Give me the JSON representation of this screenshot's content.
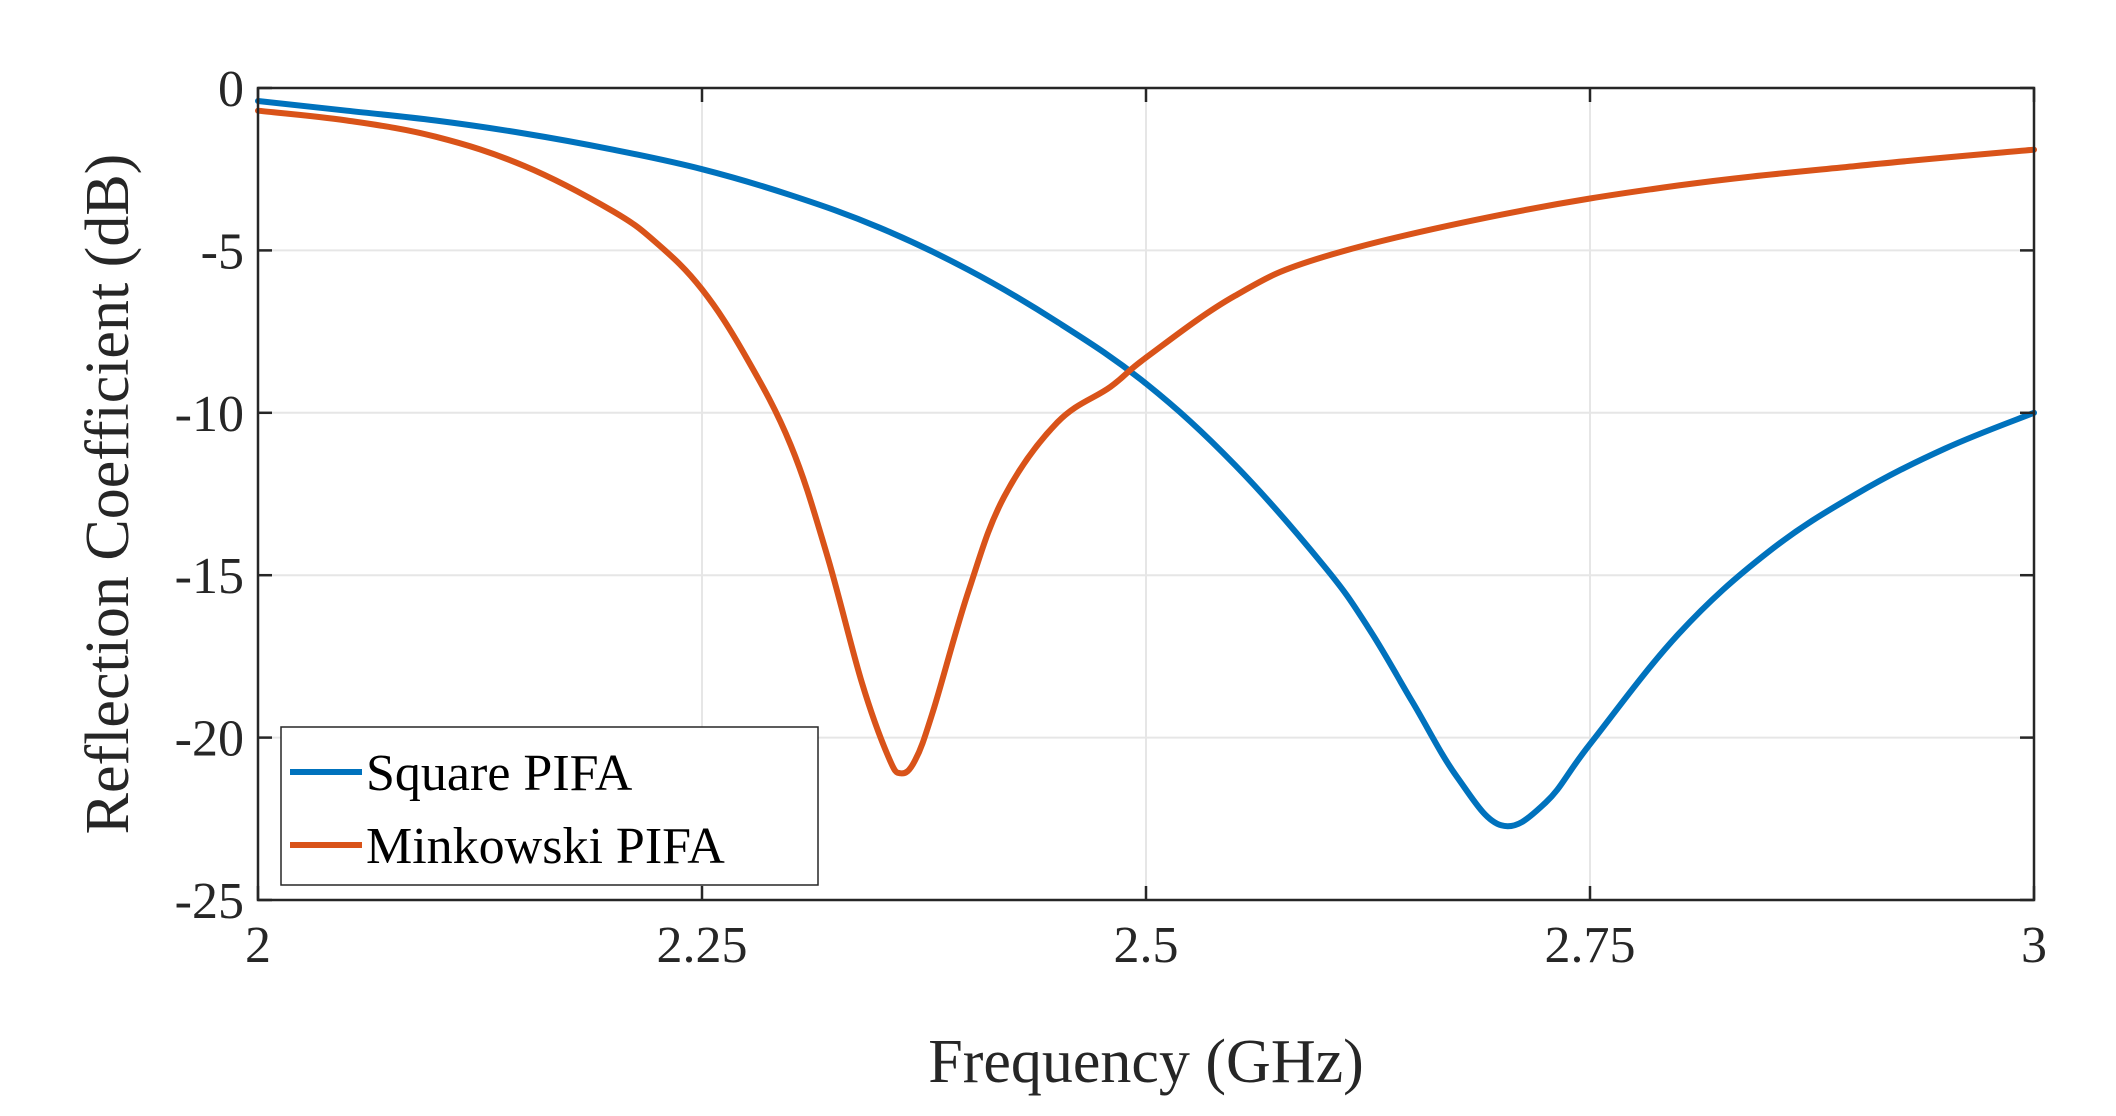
{
  "chart_data": {
    "type": "line",
    "title": "",
    "xlabel": "Frequency (GHz)",
    "ylabel": "Reflection Coefficient (dB)",
    "xlim": [
      2,
      3
    ],
    "ylim": [
      -25,
      0
    ],
    "xticks": [
      2,
      2.25,
      2.5,
      2.75,
      3
    ],
    "xtick_labels": [
      "2",
      "2.25",
      "2.5",
      "2.75",
      "3"
    ],
    "yticks": [
      0,
      -5,
      -10,
      -15,
      -20,
      -25
    ],
    "ytick_labels": [
      "0",
      "-5",
      "-10",
      "-15",
      "-20",
      "-25"
    ],
    "grid": true,
    "legend_position": "bottom-left",
    "series": [
      {
        "name": "Square PIFA",
        "color": "#0072BD",
        "x": [
          2.0,
          2.05,
          2.1,
          2.15,
          2.2,
          2.25,
          2.3,
          2.35,
          2.4,
          2.45,
          2.5,
          2.55,
          2.6,
          2.625,
          2.65,
          2.675,
          2.7,
          2.725,
          2.75,
          2.8,
          2.85,
          2.9,
          2.95,
          3.0
        ],
        "y": [
          -0.4,
          -0.7,
          -1.0,
          -1.4,
          -1.9,
          -2.5,
          -3.3,
          -4.3,
          -5.6,
          -7.2,
          -9.1,
          -11.6,
          -14.7,
          -16.6,
          -18.9,
          -21.2,
          -22.7,
          -22.0,
          -20.2,
          -16.8,
          -14.3,
          -12.5,
          -11.1,
          -10.0
        ]
      },
      {
        "name": "Minkowski PIFA",
        "color": "#D95319",
        "x": [
          2.0,
          2.05,
          2.1,
          2.15,
          2.2,
          2.225,
          2.25,
          2.275,
          2.3,
          2.32,
          2.34,
          2.355,
          2.362,
          2.37,
          2.38,
          2.4,
          2.42,
          2.45,
          2.48,
          2.5,
          2.55,
          2.6,
          2.7,
          2.8,
          2.9,
          3.0
        ],
        "y": [
          -0.7,
          -1.0,
          -1.5,
          -2.4,
          -3.8,
          -4.8,
          -6.2,
          -8.3,
          -11.0,
          -14.3,
          -18.3,
          -20.6,
          -21.1,
          -20.7,
          -19.2,
          -15.5,
          -12.6,
          -10.3,
          -9.2,
          -8.3,
          -6.4,
          -5.2,
          -3.9,
          -3.0,
          -2.4,
          -1.9
        ]
      }
    ]
  }
}
